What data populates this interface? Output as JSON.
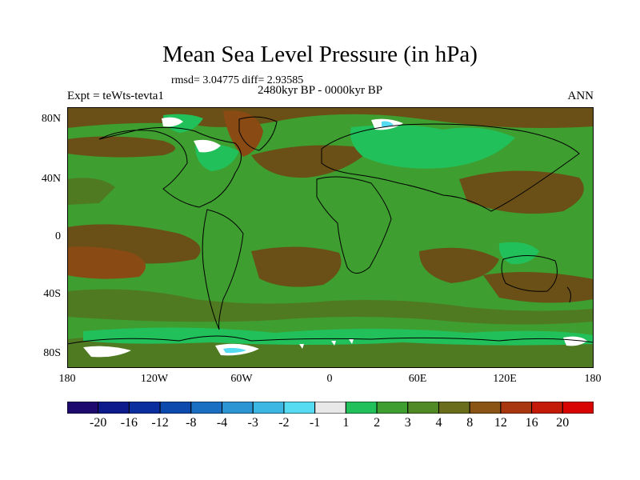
{
  "title": "Mean Sea Level Pressure (in hPa)",
  "stats": "rmsd= 3.04775 diff= 2.93585",
  "subtitle": "2480kyr BP - 0000kyr BP",
  "left_label": "Expt = teWts-tevta1",
  "right_label": "ANN",
  "y_ticks": [
    "80N",
    "40N",
    "0",
    "40S",
    "80S"
  ],
  "x_ticks": [
    "180",
    "120W",
    "60W",
    "0",
    "60E",
    "120E",
    "180"
  ],
  "colorbar": {
    "labels": [
      "-20",
      "-16",
      "-12",
      "-8",
      "-4",
      "-3",
      "-2",
      "-1",
      "1",
      "2",
      "3",
      "4",
      "8",
      "12",
      "16",
      "20"
    ],
    "colors": [
      "#1e0a6e",
      "#0c1a8c",
      "#0b2e9e",
      "#0d4aae",
      "#1a6fc2",
      "#2b95d3",
      "#3cb7e4",
      "#55dcf2",
      "#e8e8e8",
      "#22c05a",
      "#3e9e30",
      "#4f8a26",
      "#6a6e1c",
      "#8a5514",
      "#a8360e",
      "#c41b08",
      "#d80404"
    ]
  },
  "map_palette": {
    "brown": "#6a5016",
    "olive": "#4f7a22",
    "green": "#3e9e30",
    "bright_green": "#22c05a",
    "white": "#ffffff",
    "cyan": "#55dcf2",
    "orange_brown": "#8a4a14"
  }
}
